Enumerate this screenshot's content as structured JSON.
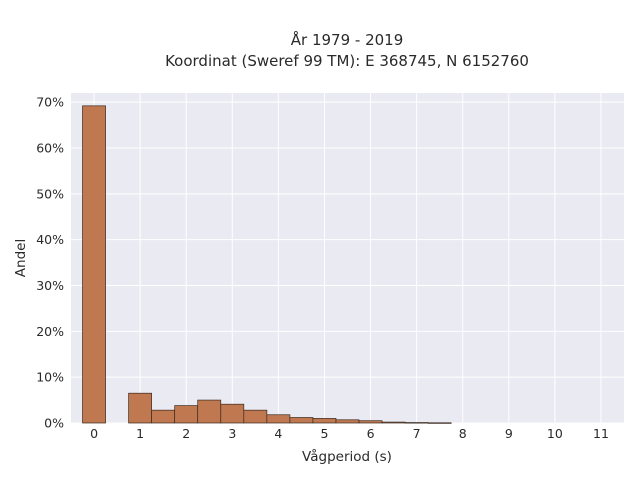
{
  "chart_data": {
    "type": "bar",
    "title": "År 1979 - 2019",
    "subtitle": "Koordinat (Sweref 99 TM): E 368745, N 6152760",
    "xlabel": "Vågperiod (s)",
    "ylabel": "Andel",
    "x_ticks": [
      "0",
      "1",
      "2",
      "3",
      "4",
      "5",
      "6",
      "7",
      "8",
      "9",
      "10",
      "11"
    ],
    "y_ticks": [
      "0%",
      "10%",
      "20%",
      "30%",
      "40%",
      "50%",
      "60%",
      "70%"
    ],
    "xlim": [
      -0.5,
      11.5
    ],
    "ylim": [
      0,
      72
    ],
    "grid": true,
    "bar_width": 0.5,
    "bar_color": "#c07850",
    "bar_edge_color": "#3a2a20",
    "background_color": "#eaeaf2",
    "x": [
      0,
      1,
      1.5,
      2,
      2.5,
      3,
      3.5,
      4,
      4.5,
      5,
      5.5,
      6,
      6.5,
      7,
      7.5
    ],
    "values": [
      69.2,
      6.5,
      2.8,
      3.8,
      5.0,
      4.1,
      2.8,
      1.8,
      1.2,
      1.0,
      0.7,
      0.5,
      0.2,
      0.1,
      0.05
    ]
  }
}
